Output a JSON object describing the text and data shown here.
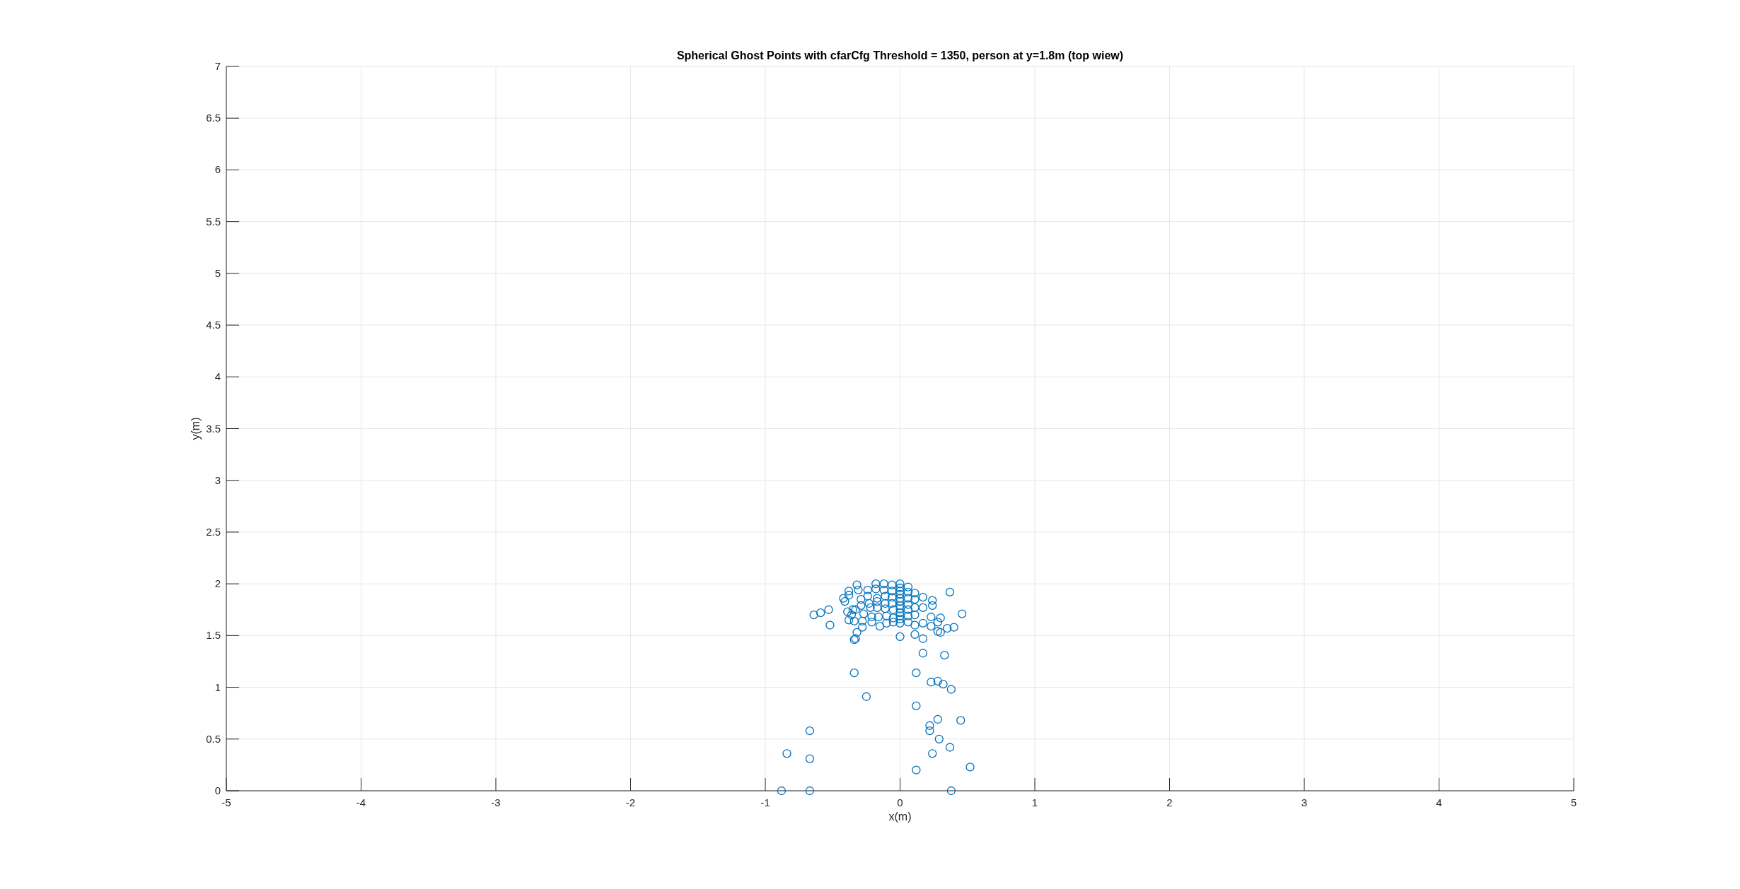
{
  "chart_data": {
    "type": "scatter",
    "title": "Spherical Ghost Points with cfarCfg Threshold = 1350, person at y=1.8m (top wiew)",
    "xlabel": "x(m)",
    "ylabel": "y(m)",
    "xlim": [
      -5,
      5
    ],
    "xticks": [
      -5,
      -4,
      -3,
      -2,
      -1,
      0,
      1,
      2,
      3,
      4,
      5
    ],
    "ylim": [
      0,
      7
    ],
    "yticks": [
      0,
      0.5,
      1,
      1.5,
      2,
      2.5,
      3,
      3.5,
      4,
      4.5,
      5,
      5.5,
      6,
      6.5,
      7
    ],
    "grid": true,
    "marker": "circle",
    "series": [
      {
        "color": "#0072bd",
        "x": [
          -0.88,
          -0.67,
          0.38,
          -0.84,
          -0.67,
          -0.67,
          0.12,
          0.52,
          0.24,
          0.37,
          0.29,
          0.22,
          0.22,
          0.28,
          0.45,
          0.12,
          -0.25,
          0.23,
          0.28,
          0.32,
          0.38,
          -0.34,
          0.12,
          0.17,
          0.33,
          -0.34,
          -0.33,
          0.17,
          0.0,
          -0.64,
          -0.59,
          -0.53,
          -0.52,
          -0.32,
          -0.31,
          -0.38,
          -0.38,
          -0.42,
          -0.41,
          -0.39,
          -0.35,
          -0.33,
          -0.36,
          -0.38,
          -0.34,
          -0.29,
          -0.29,
          -0.27,
          -0.28,
          -0.28,
          -0.32,
          -0.24,
          -0.24,
          -0.23,
          -0.22,
          -0.21,
          -0.21,
          -0.18,
          -0.18,
          -0.17,
          -0.17,
          -0.17,
          -0.16,
          -0.15,
          -0.12,
          -0.12,
          -0.11,
          -0.11,
          -0.11,
          -0.1,
          -0.1,
          -0.06,
          -0.06,
          -0.06,
          -0.06,
          -0.05,
          -0.05,
          -0.05,
          0,
          0,
          0,
          0,
          0,
          0,
          0,
          0,
          0,
          0,
          0,
          0,
          0.06,
          0.06,
          0.06,
          0.06,
          0.06,
          0.06,
          0.06,
          0.11,
          0.11,
          0.11,
          0.11,
          0.11,
          0.11,
          0.17,
          0.17,
          0.17,
          0.24,
          0.24,
          0.23,
          0.23,
          0.3,
          0.28,
          0.28,
          0.3,
          0.35,
          0.4,
          0.37,
          0.46
        ],
        "values": [
          0,
          0,
          0,
          0.36,
          0.31,
          0.58,
          0.2,
          0.23,
          0.36,
          0.42,
          0.5,
          0.58,
          0.63,
          0.69,
          0.68,
          0.82,
          0.91,
          1.05,
          1.06,
          1.03,
          0.98,
          1.14,
          1.14,
          1.33,
          1.31,
          1.46,
          1.47,
          1.47,
          1.49,
          1.7,
          1.72,
          1.75,
          1.6,
          1.99,
          1.94,
          1.93,
          1.89,
          1.86,
          1.83,
          1.73,
          1.75,
          1.75,
          1.7,
          1.65,
          1.64,
          1.85,
          1.79,
          1.71,
          1.58,
          1.64,
          1.53,
          1.94,
          1.88,
          1.81,
          1.77,
          1.68,
          1.63,
          2.0,
          1.95,
          1.86,
          1.83,
          1.77,
          1.68,
          1.59,
          2.0,
          1.94,
          1.88,
          1.81,
          1.76,
          1.69,
          1.62,
          1.99,
          1.93,
          1.87,
          1.81,
          1.75,
          1.67,
          1.63,
          2.0,
          1.96,
          1.93,
          1.9,
          1.86,
          1.83,
          1.79,
          1.76,
          1.72,
          1.69,
          1.66,
          1.62,
          1.97,
          1.92,
          1.86,
          1.8,
          1.75,
          1.69,
          1.63,
          1.91,
          1.85,
          1.77,
          1.7,
          1.6,
          1.51,
          1.87,
          1.77,
          1.62,
          1.84,
          1.79,
          1.68,
          1.59,
          1.67,
          1.63,
          1.54,
          1.53,
          1.57,
          1.58,
          1.92,
          1.71
        ]
      }
    ]
  }
}
